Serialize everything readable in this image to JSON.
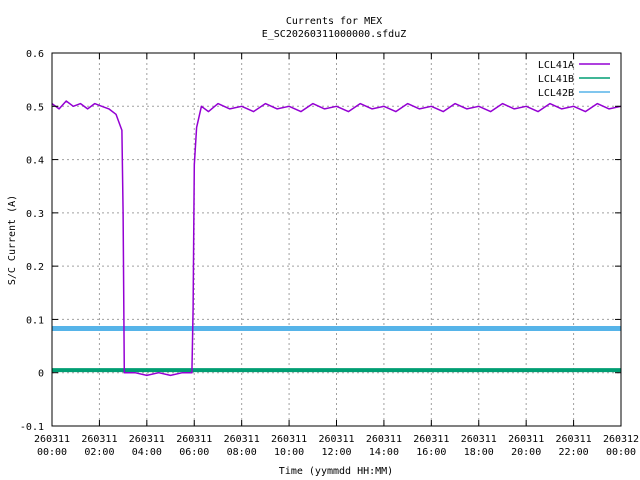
{
  "chart_data": {
    "type": "line",
    "title": "Currents for MEX",
    "subtitle": "E_SC20260311000000.sfduZ",
    "xlabel": "Time (yymmdd HH:MM)",
    "ylabel": "S/C Current (A)",
    "xlim": [
      0,
      24
    ],
    "ylim": [
      -0.1,
      0.6
    ],
    "grid": true,
    "legend_position": "top-right",
    "y_ticks": [
      {
        "value": -0.1,
        "label": "-0.1"
      },
      {
        "value": 0,
        "label": "0"
      },
      {
        "value": 0.1,
        "label": "0.1"
      },
      {
        "value": 0.2,
        "label": "0.2"
      },
      {
        "value": 0.3,
        "label": "0.3"
      },
      {
        "value": 0.4,
        "label": "0.4"
      },
      {
        "value": 0.5,
        "label": "0.5"
      },
      {
        "value": 0.6,
        "label": "0.6"
      }
    ],
    "x_ticks": [
      {
        "value": 0,
        "date": "260311",
        "time": "00:00"
      },
      {
        "value": 2,
        "date": "260311",
        "time": "02:00"
      },
      {
        "value": 4,
        "date": "260311",
        "time": "04:00"
      },
      {
        "value": 6,
        "date": "260311",
        "time": "06:00"
      },
      {
        "value": 8,
        "date": "260311",
        "time": "08:00"
      },
      {
        "value": 10,
        "date": "260311",
        "time": "10:00"
      },
      {
        "value": 12,
        "date": "260311",
        "time": "12:00"
      },
      {
        "value": 14,
        "date": "260311",
        "time": "14:00"
      },
      {
        "value": 16,
        "date": "260311",
        "time": "16:00"
      },
      {
        "value": 18,
        "date": "260311",
        "time": "18:00"
      },
      {
        "value": 20,
        "date": "260311",
        "time": "20:00"
      },
      {
        "value": 22,
        "date": "260311",
        "time": "22:00"
      },
      {
        "value": 24,
        "date": "260312",
        "time": "00:00"
      }
    ],
    "series": [
      {
        "name": "LCL41A",
        "color": "#9400d3",
        "x": [
          0,
          0.3,
          0.6,
          0.9,
          1.2,
          1.5,
          1.8,
          2.1,
          2.4,
          2.7,
          2.95,
          3.0,
          3.05,
          3.5,
          4.0,
          4.5,
          5.0,
          5.5,
          5.9,
          5.95,
          6.0,
          6.1,
          6.3,
          6.6,
          7.0,
          7.5,
          8.0,
          8.5,
          9.0,
          9.5,
          10.0,
          10.5,
          11.0,
          11.5,
          12.0,
          12.5,
          13.0,
          13.5,
          14.0,
          14.5,
          15.0,
          15.5,
          16.0,
          16.5,
          17.0,
          17.5,
          18.0,
          18.5,
          19.0,
          19.5,
          20.0,
          20.5,
          21.0,
          21.5,
          22.0,
          22.5,
          23.0,
          23.5,
          24.0
        ],
        "y": [
          0.505,
          0.495,
          0.51,
          0.5,
          0.505,
          0.495,
          0.505,
          0.5,
          0.495,
          0.485,
          0.455,
          0.3,
          0.0,
          0.0,
          -0.005,
          0.0,
          -0.005,
          0.0,
          0.0,
          0.12,
          0.39,
          0.46,
          0.5,
          0.49,
          0.505,
          0.495,
          0.5,
          0.49,
          0.505,
          0.495,
          0.5,
          0.49,
          0.505,
          0.495,
          0.5,
          0.49,
          0.505,
          0.495,
          0.5,
          0.49,
          0.505,
          0.495,
          0.5,
          0.49,
          0.505,
          0.495,
          0.5,
          0.49,
          0.505,
          0.495,
          0.5,
          0.49,
          0.505,
          0.495,
          0.5,
          0.49,
          0.505,
          0.495,
          0.5
        ]
      },
      {
        "name": "LCL41B",
        "color": "#009e73",
        "x": [
          0,
          24
        ],
        "y": [
          0.005,
          0.005
        ]
      },
      {
        "name": "LCL42B",
        "color": "#56b4e9",
        "x": [
          0,
          24
        ],
        "y": [
          0.083,
          0.083
        ]
      }
    ]
  }
}
